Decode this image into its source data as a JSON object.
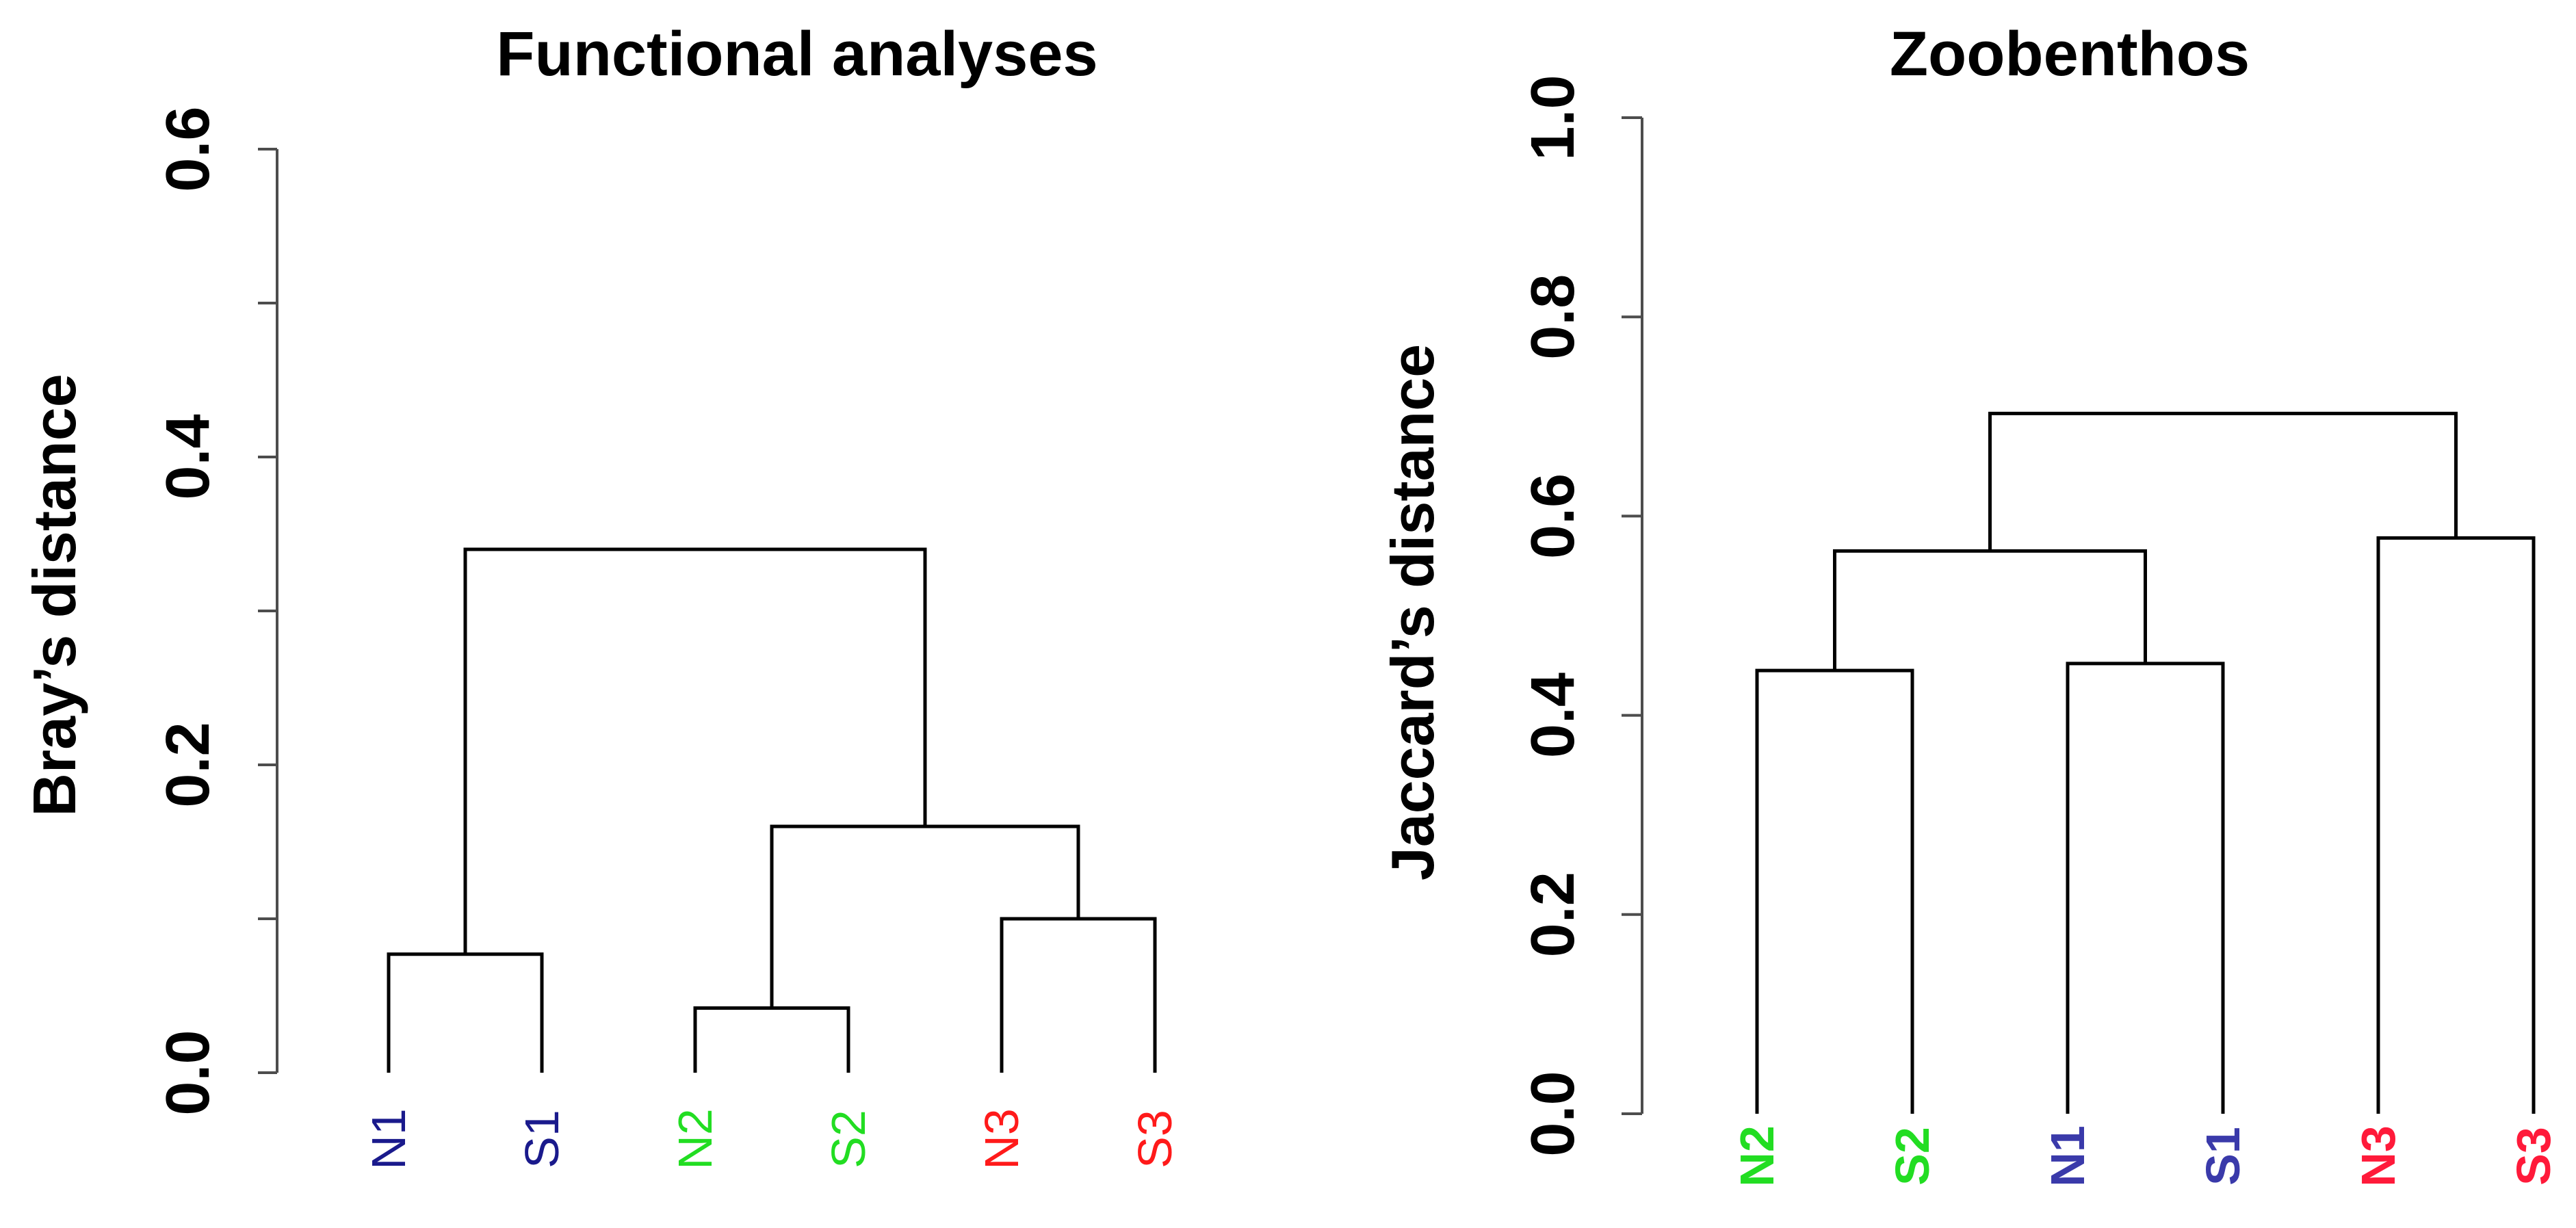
{
  "chart_data": [
    {
      "type": "dendrogram",
      "title": "Functional analyses",
      "ylabel": "Bray’s distance",
      "ylim": [
        0,
        0.6
      ],
      "yticks": [
        "0.0",
        "0.2",
        "0.4",
        "0.6"
      ],
      "minor_ticks": [
        0.1,
        0.3,
        0.5
      ],
      "leaves": [
        {
          "label": "N1",
          "color": "#1a1a8c"
        },
        {
          "label": "S1",
          "color": "#1a1a8c"
        },
        {
          "label": "N2",
          "color": "#22dd22"
        },
        {
          "label": "S2",
          "color": "#22dd22"
        },
        {
          "label": "N3",
          "color": "#ff1a1a"
        },
        {
          "label": "S3",
          "color": "#ff1a1a"
        }
      ],
      "merges": [
        {
          "left": 2,
          "right": 3,
          "height": 0.042
        },
        {
          "left": 0,
          "right": 1,
          "height": 0.077
        },
        {
          "left": 4,
          "right": 5,
          "height": 0.1
        },
        {
          "left": "m0",
          "right": "m2",
          "height": 0.16
        },
        {
          "left": "m1",
          "right": "m3",
          "height": 0.34
        }
      ]
    },
    {
      "type": "dendrogram",
      "title": "Zoobenthos",
      "ylabel": "Jaccard’s distance",
      "ylim": [
        0,
        1.0
      ],
      "yticks": [
        "0.0",
        "0.2",
        "0.4",
        "0.6",
        "0.8",
        "1.0"
      ],
      "minor_ticks": [],
      "leaves": [
        {
          "label": "N2",
          "color": "#22dd22"
        },
        {
          "label": "S2",
          "color": "#22dd22"
        },
        {
          "label": "N1",
          "color": "#3a3aaa"
        },
        {
          "label": "S1",
          "color": "#3a3aaa"
        },
        {
          "label": "N3",
          "color": "#ff1a3a"
        },
        {
          "label": "S3",
          "color": "#ff1a3a"
        }
      ],
      "merges": [
        {
          "left": 0,
          "right": 1,
          "height": 0.445
        },
        {
          "left": 2,
          "right": 3,
          "height": 0.452
        },
        {
          "left": "m0",
          "right": "m1",
          "height": 0.565
        },
        {
          "left": 4,
          "right": 5,
          "height": 0.578
        },
        {
          "left": "m2",
          "right": "m3",
          "height": 0.703
        }
      ]
    }
  ]
}
